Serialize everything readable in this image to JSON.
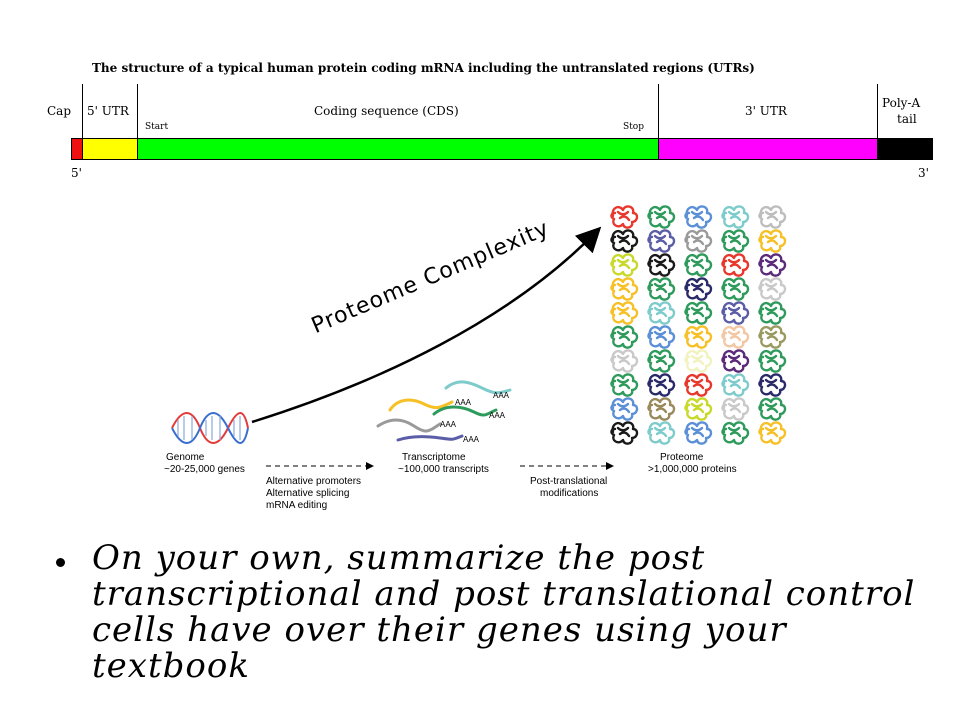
{
  "mrna": {
    "title": "The structure of a typical human protein coding mRNA including the untranslated regions (UTRs)",
    "labels": {
      "cap": "Cap",
      "utr5": "5' UTR",
      "cds": "Coding sequence (CDS)",
      "utr3": "3' UTR",
      "polya_1": "Poly-A",
      "polya_2": "tail",
      "start": "Start",
      "stop": "Stop",
      "end5": "5'",
      "end3": "3'"
    },
    "colors": {
      "cap": "#ee1111",
      "utr5": "#ffff00",
      "cds": "#00ff00",
      "utr3": "#ff00ff",
      "polya": "#000000"
    }
  },
  "figure": {
    "complexity_label": "Proteome Complexity",
    "genome": {
      "title": "Genome",
      "count": "~20-25,000 genes"
    },
    "transcriptome": {
      "title": "Transcriptome",
      "count": "~100,000 transcripts"
    },
    "proteome": {
      "title": "Proteome",
      "count": ">1,000,000 proteins"
    },
    "step1": [
      "Alternative promoters",
      "Alternative splicing",
      "mRNA editing"
    ],
    "step2": [
      "Post-translational",
      "modifications"
    ],
    "polya_tags": [
      "AAA",
      "AAA",
      "AAA",
      "AAA",
      "AAA"
    ],
    "protein_grid_colors": [
      [
        "#e8372c",
        "#2e9a5c",
        "#5b8fd6",
        "#7ecbcb",
        "#bdbdbd"
      ],
      [
        "#1a1a1a",
        "#5b5ea6",
        "#9a9a9a",
        "#2e9a5c",
        "#f6c026"
      ],
      [
        "#c8d92a",
        "#1a1a1a",
        "#2e9a5c",
        "#e8372c",
        "#5c2a7a"
      ],
      [
        "#f6c026",
        "#2e9a5c",
        "#2a2a6a",
        "#2e9a5c",
        "#c9c9c9"
      ],
      [
        "#f6c026",
        "#7ecbcb",
        "#2e9a5c",
        "#5b5ea6",
        "#2e9a5c"
      ],
      [
        "#2e9a5c",
        "#5b8fd6",
        "#f6c026",
        "#f3c7a4",
        "#9a9a60"
      ],
      [
        "#c9c9c9",
        "#2e9a5c",
        "#f2f2c0",
        "#5c2a7a",
        "#2e9a5c"
      ],
      [
        "#2e9a5c",
        "#2a2a6a",
        "#e8372c",
        "#7ecbcb",
        "#2a2a6a"
      ],
      [
        "#5b8fd6",
        "#9a8a5a",
        "#c8d92a",
        "#c9c9c9",
        "#2e9a5c"
      ],
      [
        "#1a1a1a",
        "#7ecbcb",
        "#5b8fd6",
        "#2e9a5c",
        "#f6c026"
      ]
    ]
  },
  "bullet": {
    "text": "On your own, summarize the post transcriptional and post translational control cells have over their genes using your textbook"
  }
}
